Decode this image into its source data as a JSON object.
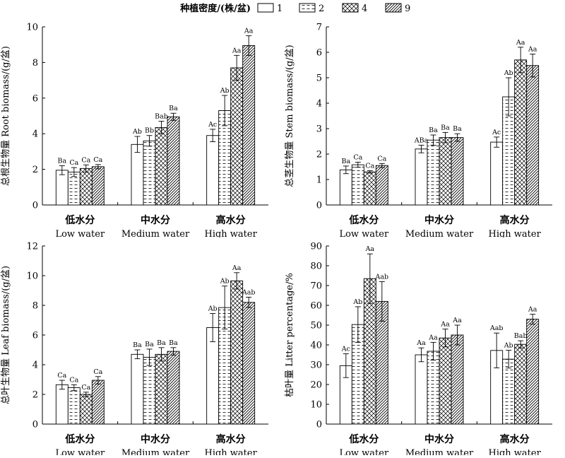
{
  "legend": {
    "title": "种植密度/(株/盆)",
    "items": [
      {
        "label": "1",
        "pattern": "none"
      },
      {
        "label": "2",
        "pattern": "dash"
      },
      {
        "label": "4",
        "pattern": "cross"
      },
      {
        "label": "9",
        "pattern": "diag"
      }
    ]
  },
  "chart_data": [
    {
      "type": "bar",
      "ylabel": "总根生物量 Root biomass/(g/盆)",
      "ylim": [
        0,
        10
      ],
      "yticks": [
        0,
        2,
        4,
        6,
        8,
        10
      ],
      "categories": [
        {
          "zh": "低水分",
          "en": "Low water"
        },
        {
          "zh": "中水分",
          "en": "Medium water"
        },
        {
          "zh": "高水分",
          "en": "High water"
        }
      ],
      "series": [
        {
          "name": "1",
          "values": [
            1.95,
            3.4,
            3.9
          ],
          "errors": [
            0.25,
            0.45,
            0.35
          ],
          "labels": [
            "Ba",
            "Ab",
            "Ac"
          ]
        },
        {
          "name": "2",
          "values": [
            1.85,
            3.6,
            5.3
          ],
          "errors": [
            0.25,
            0.3,
            0.85
          ],
          "labels": [
            "Ca",
            "Bb",
            "Ab"
          ]
        },
        {
          "name": "4",
          "values": [
            2.05,
            4.35,
            7.7
          ],
          "errors": [
            0.2,
            0.35,
            0.7
          ],
          "labels": [
            "Ca",
            "Bab",
            "Aa"
          ]
        },
        {
          "name": "9",
          "values": [
            2.15,
            4.95,
            8.95
          ],
          "errors": [
            0.12,
            0.2,
            0.55
          ],
          "labels": [
            "Ca",
            "Ba",
            "Aa"
          ]
        }
      ]
    },
    {
      "type": "bar",
      "ylabel": "总茎生物量 Stem biomass/(g/盆)",
      "ylim": [
        0,
        7
      ],
      "yticks": [
        0,
        1,
        2,
        3,
        4,
        5,
        6,
        7
      ],
      "categories": [
        {
          "zh": "低水分",
          "en": "Low water"
        },
        {
          "zh": "中水分",
          "en": "Medium water"
        },
        {
          "zh": "高水分",
          "en": "High water"
        }
      ],
      "series": [
        {
          "name": "1",
          "values": [
            1.38,
            2.2,
            2.47
          ],
          "errors": [
            0.15,
            0.15,
            0.2
          ],
          "labels": [
            "Ba",
            "ABa",
            "Ac"
          ]
        },
        {
          "name": "2",
          "values": [
            1.58,
            2.55,
            4.25
          ],
          "errors": [
            0.1,
            0.2,
            0.75
          ],
          "labels": [
            "Ca",
            "Ba",
            "Ab"
          ]
        },
        {
          "name": "4",
          "values": [
            1.3,
            2.65,
            5.7
          ],
          "errors": [
            0.05,
            0.2,
            0.5
          ],
          "labels": [
            "Ca",
            "Ba",
            "Aa"
          ]
        },
        {
          "name": "9",
          "values": [
            1.55,
            2.65,
            5.48
          ],
          "errors": [
            0.08,
            0.15,
            0.45
          ],
          "labels": [
            "Ca",
            "Ba",
            "Aa"
          ]
        }
      ]
    },
    {
      "type": "bar",
      "ylabel": "总叶生物量 Leaf biomass/(g/盆)",
      "ylim": [
        0,
        12
      ],
      "yticks": [
        0,
        2,
        4,
        6,
        8,
        10,
        12
      ],
      "categories": [
        {
          "zh": "低水分",
          "en": "Low water"
        },
        {
          "zh": "中水分",
          "en": "Medium water"
        },
        {
          "zh": "高水分",
          "en": "High water"
        }
      ],
      "series": [
        {
          "name": "1",
          "values": [
            2.65,
            4.7,
            6.5
          ],
          "errors": [
            0.3,
            0.3,
            0.95
          ],
          "labels": [
            "Ca",
            "Ba",
            "Ab"
          ]
        },
        {
          "name": "2",
          "values": [
            2.45,
            4.5,
            7.85
          ],
          "errors": [
            0.2,
            0.55,
            1.45
          ],
          "labels": [
            "Ca",
            "Ba",
            "Ab"
          ]
        },
        {
          "name": "4",
          "values": [
            2.0,
            4.7,
            9.65
          ],
          "errors": [
            0.15,
            0.45,
            0.55
          ],
          "labels": [
            "Ca",
            "Ba",
            "Aa"
          ]
        },
        {
          "name": "9",
          "values": [
            2.95,
            4.9,
            8.2
          ],
          "errors": [
            0.25,
            0.25,
            0.35
          ],
          "labels": [
            "Ca",
            "Ba",
            "Aab"
          ]
        }
      ]
    },
    {
      "type": "bar",
      "ylabel": "枯叶量 Litter percentage/%",
      "ylim": [
        0,
        90
      ],
      "yticks": [
        0,
        10,
        20,
        30,
        40,
        50,
        60,
        70,
        80,
        90
      ],
      "categories": [
        {
          "zh": "低水分",
          "en": "Low water"
        },
        {
          "zh": "中水分",
          "en": "Medium water"
        },
        {
          "zh": "高水分",
          "en": "High water"
        }
      ],
      "series": [
        {
          "name": "1",
          "values": [
            29.5,
            35.0,
            37.2
          ],
          "errors": [
            6.0,
            3.5,
            8.8
          ],
          "labels": [
            "Ac",
            "Aa",
            "Aab"
          ]
        },
        {
          "name": "2",
          "values": [
            50.3,
            36.8,
            32.8
          ],
          "errors": [
            9.0,
            4.5,
            4.5
          ],
          "labels": [
            "Ab",
            "Aa",
            "Ab"
          ]
        },
        {
          "name": "4",
          "values": [
            73.5,
            43.5,
            40.3
          ],
          "errors": [
            12.5,
            4.5,
            1.8
          ],
          "labels": [
            "Aa",
            "Aa",
            "Bab"
          ]
        },
        {
          "name": "9",
          "values": [
            62.0,
            45.0,
            53.0
          ],
          "errors": [
            10.0,
            5.0,
            2.5
          ],
          "labels": [
            "Aab",
            "Aa",
            "Aa"
          ]
        }
      ]
    }
  ]
}
